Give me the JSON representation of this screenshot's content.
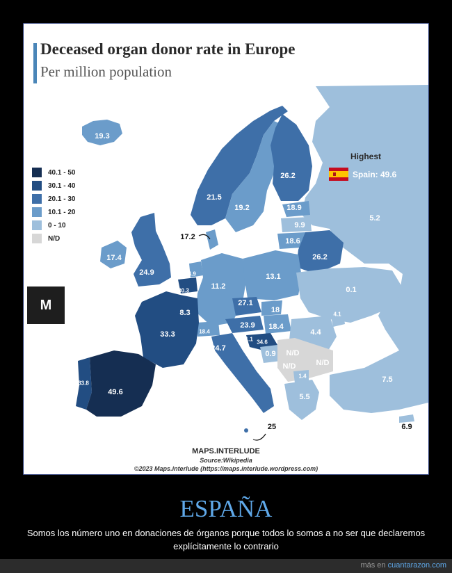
{
  "map": {
    "title": "Deceased organ donor rate in Europe",
    "subtitle": "Per million population",
    "legend": [
      {
        "label": "40.1 - 50",
        "color": "#152e52"
      },
      {
        "label": "30.1 - 40",
        "color": "#224d82"
      },
      {
        "label": "20.1 - 30",
        "color": "#3e6fa8"
      },
      {
        "label": "10.1 - 20",
        "color": "#6b9cca"
      },
      {
        "label": "0 - 10",
        "color": "#9ebfdc"
      },
      {
        "label": "N/D",
        "color": "#d7d7d7"
      }
    ],
    "highest_title": "Highest",
    "highest_value": "Spain: 49.6",
    "countries": {
      "iceland": "19.3",
      "norway": "21.5",
      "sweden": "19.2",
      "finland": "26.2",
      "estonia": "18.9",
      "latvia": "9.9",
      "lithuania": "18.6",
      "belarus": "26.2",
      "russia": "5.2",
      "ireland": "17.4",
      "uk": "24.9",
      "denmark": "17.2",
      "netherlands": "14.9",
      "belgium": "30.3",
      "luxembourg": "8.3",
      "germany": "11.2",
      "poland": "13.1",
      "ukraine": "0.1",
      "czechia": "27.1",
      "slovakia": "18",
      "moldova": "4.1",
      "austria": "23.9",
      "hungary": "18.4",
      "romania": "4.4",
      "switzerland": "18.4",
      "slovenia": "21.1",
      "croatia": "34.6",
      "france": "33.3",
      "italy": "24.7",
      "bosnia": "0.9",
      "serbia": "N/D",
      "montenegro": "N/D",
      "bulgaria": "N/D",
      "north_macedonia": "1.4",
      "greece": "5.5",
      "turkey": "7.5",
      "portugal": "33.8",
      "spain": "49.6",
      "malta": "25",
      "cyprus": "6.9"
    },
    "footer_brand": "MAPS.INTERLUDE",
    "footer_source": "Source:Wikipedia",
    "footer_copyright": "©2023 Maps.interlude (https://maps.interlude.wordpress.com)"
  },
  "logo_text": "M",
  "post": {
    "headline": "ESPAÑA",
    "caption": "Somos los número uno en donaciones de órganos porque todos lo somos a no ser que declaremos explícitamente lo contrario"
  },
  "bottom_bar": {
    "prefix": "más en",
    "site": "cuantarazon.com"
  }
}
